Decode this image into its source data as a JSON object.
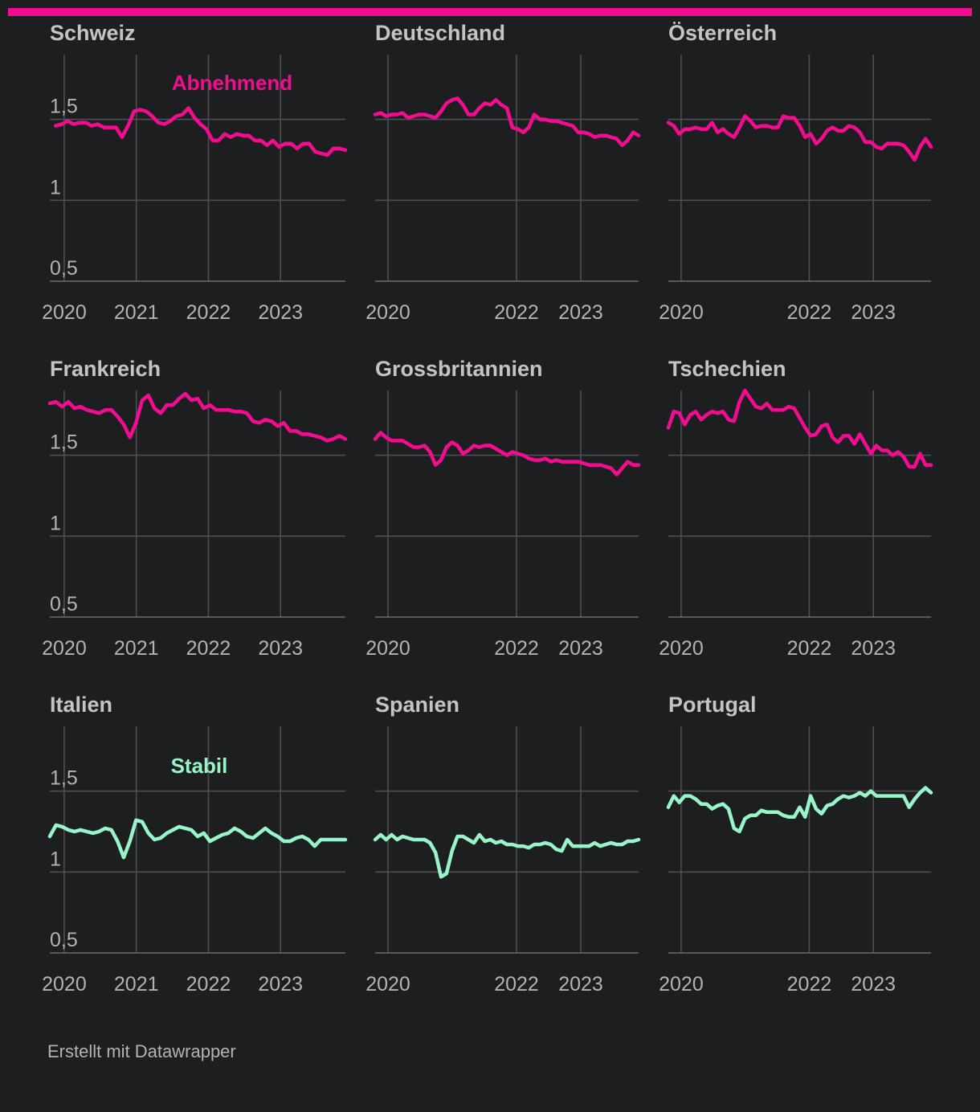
{
  "credit": "Erstellt mit Datawrapper",
  "colors": {
    "decreasing": "#f20c8f",
    "stable": "#98f5c8",
    "accent_bar": "#f20c8f"
  },
  "chart_data": {
    "type": "line",
    "ylim": [
      0.5,
      1.9
    ],
    "yticks": [
      {
        "v": 0.5,
        "label": "0,5"
      },
      {
        "v": 1,
        "label": "1"
      },
      {
        "v": 1.5,
        "label": "1,5"
      }
    ],
    "xlim": [
      2019.8,
      2023.9
    ],
    "grid": true,
    "panels": [
      {
        "title": "Schweiz",
        "group": "decreasing",
        "annotation": "Abnehmend",
        "xticks": [
          {
            "v": 2020,
            "label": "2020"
          },
          {
            "v": 2021,
            "label": "2021"
          },
          {
            "v": 2022,
            "label": "2022"
          },
          {
            "v": 2023,
            "label": "2023"
          }
        ],
        "series": [
          {
            "x_start": 2019.88,
            "x_end": 2023.9,
            "values": [
              1.46,
              1.47,
              1.49,
              1.47,
              1.48,
              1.48,
              1.46,
              1.47,
              1.45,
              1.45,
              1.45,
              1.39,
              1.46,
              1.55,
              1.56,
              1.55,
              1.52,
              1.48,
              1.47,
              1.49,
              1.52,
              1.53,
              1.57,
              1.51,
              1.47,
              1.44,
              1.37,
              1.37,
              1.41,
              1.39,
              1.41,
              1.4,
              1.4,
              1.37,
              1.37,
              1.34,
              1.37,
              1.33,
              1.35,
              1.35,
              1.32,
              1.35,
              1.35,
              1.3,
              1.29,
              1.28,
              1.32,
              1.32,
              1.31
            ]
          }
        ]
      },
      {
        "title": "Deutschland",
        "group": "decreasing",
        "xticks": [
          {
            "v": 2020,
            "label": "2020"
          },
          {
            "v": 2022,
            "label": "2022"
          },
          {
            "v": 2023,
            "label": "2023"
          }
        ],
        "series": [
          {
            "x_start": 2019.8,
            "x_end": 2023.9,
            "values": [
              1.53,
              1.54,
              1.52,
              1.53,
              1.53,
              1.54,
              1.51,
              1.52,
              1.53,
              1.53,
              1.52,
              1.51,
              1.55,
              1.6,
              1.62,
              1.63,
              1.59,
              1.53,
              1.53,
              1.57,
              1.6,
              1.59,
              1.62,
              1.59,
              1.57,
              1.45,
              1.44,
              1.42,
              1.45,
              1.53,
              1.5,
              1.5,
              1.49,
              1.49,
              1.48,
              1.47,
              1.46,
              1.42,
              1.42,
              1.41,
              1.39,
              1.4,
              1.4,
              1.39,
              1.38,
              1.34,
              1.37,
              1.42,
              1.4
            ]
          }
        ]
      },
      {
        "title": "Österreich",
        "group": "decreasing",
        "xticks": [
          {
            "v": 2020,
            "label": "2020"
          },
          {
            "v": 2022,
            "label": "2022"
          },
          {
            "v": 2023,
            "label": "2023"
          }
        ],
        "series": [
          {
            "x_start": 2019.8,
            "x_end": 2023.9,
            "values": [
              1.48,
              1.46,
              1.41,
              1.44,
              1.44,
              1.45,
              1.44,
              1.44,
              1.48,
              1.42,
              1.44,
              1.41,
              1.39,
              1.45,
              1.52,
              1.49,
              1.45,
              1.46,
              1.46,
              1.45,
              1.45,
              1.52,
              1.51,
              1.51,
              1.46,
              1.39,
              1.41,
              1.35,
              1.38,
              1.43,
              1.45,
              1.43,
              1.43,
              1.46,
              1.45,
              1.42,
              1.36,
              1.36,
              1.33,
              1.32,
              1.35,
              1.35,
              1.35,
              1.34,
              1.3,
              1.25,
              1.33,
              1.38,
              1.33
            ]
          }
        ]
      },
      {
        "title": "Frankreich",
        "group": "decreasing",
        "xticks": [
          {
            "v": 2020,
            "label": "2020"
          },
          {
            "v": 2021,
            "label": "2021"
          },
          {
            "v": 2022,
            "label": "2022"
          },
          {
            "v": 2023,
            "label": "2023"
          }
        ],
        "series": [
          {
            "x_start": 2019.8,
            "x_end": 2023.9,
            "values": [
              1.82,
              1.83,
              1.8,
              1.83,
              1.79,
              1.8,
              1.78,
              1.77,
              1.76,
              1.78,
              1.78,
              1.74,
              1.69,
              1.61,
              1.7,
              1.84,
              1.87,
              1.79,
              1.76,
              1.81,
              1.81,
              1.85,
              1.88,
              1.84,
              1.85,
              1.79,
              1.81,
              1.78,
              1.78,
              1.78,
              1.77,
              1.77,
              1.76,
              1.71,
              1.7,
              1.72,
              1.71,
              1.68,
              1.7,
              1.65,
              1.65,
              1.63,
              1.63,
              1.62,
              1.61,
              1.59,
              1.6,
              1.62,
              1.6
            ]
          }
        ]
      },
      {
        "title": "Grossbritannien",
        "group": "decreasing",
        "xticks": [
          {
            "v": 2020,
            "label": "2020"
          },
          {
            "v": 2022,
            "label": "2022"
          },
          {
            "v": 2023,
            "label": "2023"
          }
        ],
        "series": [
          {
            "x_start": 2019.8,
            "x_end": 2023.9,
            "values": [
              1.6,
              1.64,
              1.61,
              1.59,
              1.59,
              1.59,
              1.57,
              1.55,
              1.55,
              1.56,
              1.52,
              1.44,
              1.47,
              1.55,
              1.58,
              1.56,
              1.51,
              1.53,
              1.56,
              1.55,
              1.56,
              1.56,
              1.54,
              1.52,
              1.5,
              1.52,
              1.51,
              1.5,
              1.48,
              1.47,
              1.47,
              1.48,
              1.46,
              1.47,
              1.46,
              1.46,
              1.46,
              1.46,
              1.45,
              1.44,
              1.44,
              1.44,
              1.43,
              1.42,
              1.38,
              1.42,
              1.46,
              1.44,
              1.44
            ]
          }
        ]
      },
      {
        "title": "Tschechien",
        "group": "decreasing",
        "xticks": [
          {
            "v": 2020,
            "label": "2020"
          },
          {
            "v": 2022,
            "label": "2022"
          },
          {
            "v": 2023,
            "label": "2023"
          }
        ],
        "series": [
          {
            "x_start": 2019.8,
            "x_end": 2023.9,
            "values": [
              1.67,
              1.77,
              1.76,
              1.69,
              1.75,
              1.77,
              1.72,
              1.75,
              1.77,
              1.76,
              1.77,
              1.72,
              1.71,
              1.83,
              1.9,
              1.85,
              1.8,
              1.79,
              1.82,
              1.78,
              1.78,
              1.78,
              1.8,
              1.79,
              1.73,
              1.67,
              1.62,
              1.63,
              1.68,
              1.69,
              1.61,
              1.58,
              1.62,
              1.62,
              1.57,
              1.63,
              1.57,
              1.51,
              1.56,
              1.53,
              1.53,
              1.5,
              1.52,
              1.49,
              1.43,
              1.43,
              1.51,
              1.44,
              1.44
            ]
          }
        ]
      },
      {
        "title": "Italien",
        "group": "stable",
        "annotation": "Stabil",
        "xticks": [
          {
            "v": 2020,
            "label": "2020"
          },
          {
            "v": 2021,
            "label": "2021"
          },
          {
            "v": 2022,
            "label": "2022"
          },
          {
            "v": 2023,
            "label": "2023"
          }
        ],
        "series": [
          {
            "x_start": 2019.8,
            "x_end": 2023.9,
            "values": [
              1.22,
              1.29,
              1.28,
              1.26,
              1.25,
              1.26,
              1.25,
              1.24,
              1.25,
              1.27,
              1.26,
              1.19,
              1.09,
              1.19,
              1.32,
              1.31,
              1.24,
              1.2,
              1.21,
              1.24,
              1.26,
              1.28,
              1.27,
              1.26,
              1.22,
              1.24,
              1.19,
              1.21,
              1.23,
              1.24,
              1.27,
              1.25,
              1.22,
              1.21,
              1.24,
              1.27,
              1.24,
              1.22,
              1.19,
              1.19,
              1.21,
              1.22,
              1.2,
              1.16,
              1.2,
              1.2,
              1.2,
              1.2,
              1.2
            ]
          }
        ]
      },
      {
        "title": "Spanien",
        "group": "stable",
        "xticks": [
          {
            "v": 2020,
            "label": "2020"
          },
          {
            "v": 2022,
            "label": "2022"
          },
          {
            "v": 2023,
            "label": "2023"
          }
        ],
        "series": [
          {
            "x_start": 2019.8,
            "x_end": 2023.9,
            "values": [
              1.2,
              1.23,
              1.2,
              1.23,
              1.2,
              1.22,
              1.21,
              1.2,
              1.2,
              1.2,
              1.18,
              1.12,
              0.97,
              0.99,
              1.13,
              1.22,
              1.22,
              1.2,
              1.18,
              1.23,
              1.19,
              1.2,
              1.18,
              1.19,
              1.17,
              1.17,
              1.16,
              1.16,
              1.15,
              1.17,
              1.17,
              1.18,
              1.17,
              1.14,
              1.13,
              1.2,
              1.16,
              1.16,
              1.16,
              1.16,
              1.18,
              1.16,
              1.17,
              1.18,
              1.17,
              1.17,
              1.19,
              1.19,
              1.2
            ]
          }
        ]
      },
      {
        "title": "Portugal",
        "group": "stable",
        "xticks": [
          {
            "v": 2020,
            "label": "2020"
          },
          {
            "v": 2022,
            "label": "2022"
          },
          {
            "v": 2023,
            "label": "2023"
          }
        ],
        "series": [
          {
            "x_start": 2019.8,
            "x_end": 2023.9,
            "values": [
              1.4,
              1.47,
              1.43,
              1.47,
              1.47,
              1.45,
              1.42,
              1.42,
              1.39,
              1.41,
              1.42,
              1.39,
              1.27,
              1.25,
              1.33,
              1.35,
              1.35,
              1.38,
              1.37,
              1.37,
              1.37,
              1.35,
              1.34,
              1.34,
              1.4,
              1.34,
              1.47,
              1.39,
              1.36,
              1.41,
              1.42,
              1.45,
              1.47,
              1.46,
              1.47,
              1.49,
              1.47,
              1.5,
              1.47,
              1.47,
              1.47,
              1.47,
              1.47,
              1.47,
              1.4,
              1.45,
              1.49,
              1.52,
              1.49
            ]
          }
        ]
      }
    ]
  }
}
